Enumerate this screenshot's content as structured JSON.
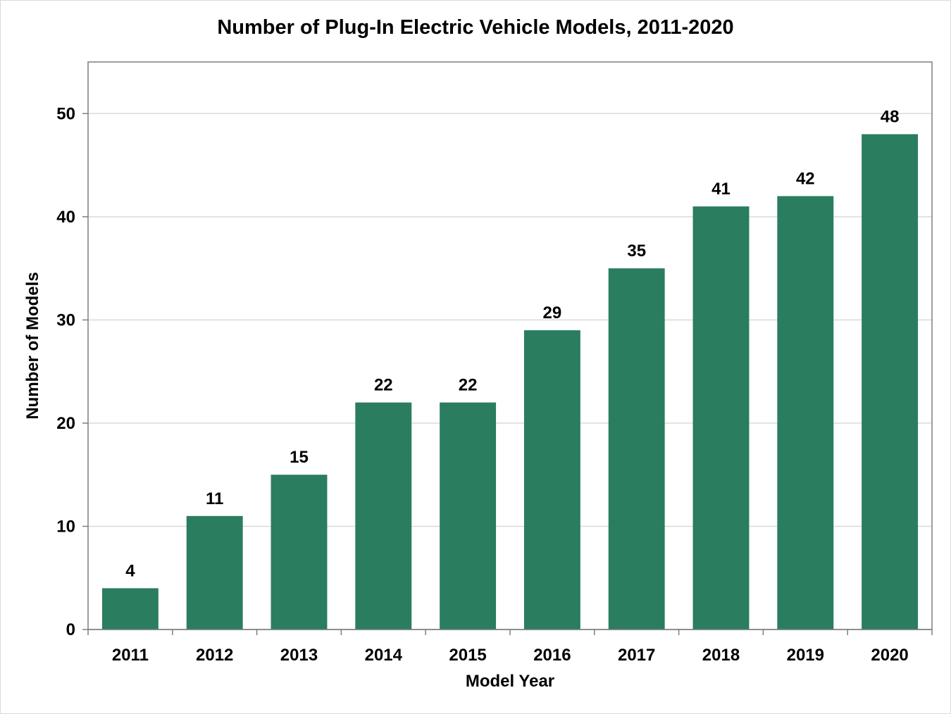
{
  "chart_data": {
    "type": "bar",
    "title": "Number of Plug-In Electric Vehicle Models, 2011-2020",
    "xlabel": "Model Year",
    "ylabel": "Number of Models",
    "categories": [
      "2011",
      "2012",
      "2013",
      "2014",
      "2015",
      "2016",
      "2017",
      "2018",
      "2019",
      "2020"
    ],
    "values": [
      4,
      11,
      15,
      22,
      22,
      29,
      35,
      41,
      42,
      48
    ],
    "ylim": [
      0,
      55
    ],
    "yticks": [
      0,
      10,
      20,
      30,
      40,
      50
    ],
    "grid": true,
    "legend": "none",
    "bar_color": "#2a7d5f",
    "data_labels": true
  }
}
